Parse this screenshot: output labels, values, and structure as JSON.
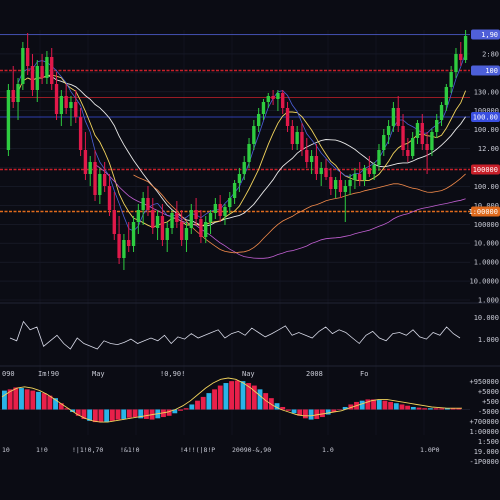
{
  "colors": {
    "background": "#0b0c14",
    "up": "#2ecc40",
    "down": "#e0194a",
    "ma_white": "#e8e8e8",
    "ma_yellow": "#f2d45c",
    "ma_orange": "#f28a4a",
    "ma_purple": "#c05fd1",
    "ma_blue": "#4c5fd8",
    "level_red": "#c8202a",
    "level_orange": "#e06a1c",
    "level_blue": "#3a4fe0",
    "hist_up": "#2ab4e8",
    "hist_down": "#e8204a"
  },
  "chart_data": [
    {
      "type": "candlestick",
      "panel": "price",
      "ylim": [
        900,
        1800
      ],
      "grid": true,
      "y_tick_labels": [
        "1:#90",
        "2:80",
        "100",
        "130.00",
        "100000",
        "100.00",
        "12.00",
        "10.000",
        "100.00",
        "10.000",
        "100000",
        "10.000",
        "1.0000",
        "10.0000",
        "1.000"
      ],
      "x_tick_labels": [
        "090",
        "Im!90",
        "May",
        "!0,90!",
        "Nay",
        "2008",
        "Fo"
      ],
      "price_tags": [
        {
          "label": "1,90",
          "level": 1785,
          "color": "#5060d8"
        },
        {
          "label": "100",
          "level": 1665,
          "color": "#4c5fd8"
        },
        {
          "label": "100.00",
          "level": 1510,
          "color": "#3a4fe0"
        },
        {
          "label": "100000",
          "level": 1335,
          "color": "#c8202a"
        },
        {
          "label": "1:00000",
          "level": 1195,
          "color": "#e06a1c"
        }
      ],
      "levels": [
        {
          "value": 1785,
          "color": "#5060d8",
          "style": "solid"
        },
        {
          "value": 1665,
          "color": "#c8202a",
          "style": "dashed"
        },
        {
          "value": 1575,
          "color": "#c8202a",
          "style": "solid"
        },
        {
          "value": 1510,
          "color": "#3a4fe0",
          "style": "solid"
        },
        {
          "value": 1335,
          "color": "#c8202a",
          "style": "dashed"
        },
        {
          "value": 1195,
          "color": "#e06a1c",
          "style": "dashed"
        }
      ],
      "ohlc": [
        [
          1400,
          1620,
          1380,
          1600
        ],
        [
          1600,
          1680,
          1540,
          1560
        ],
        [
          1560,
          1640,
          1500,
          1620
        ],
        [
          1620,
          1760,
          1600,
          1740
        ],
        [
          1740,
          1790,
          1650,
          1680
        ],
        [
          1680,
          1720,
          1580,
          1600
        ],
        [
          1600,
          1700,
          1560,
          1680
        ],
        [
          1680,
          1720,
          1620,
          1640
        ],
        [
          1640,
          1730,
          1620,
          1710
        ],
        [
          1710,
          1740,
          1600,
          1620
        ],
        [
          1620,
          1660,
          1500,
          1520
        ],
        [
          1520,
          1600,
          1480,
          1580
        ],
        [
          1580,
          1620,
          1520,
          1540
        ],
        [
          1540,
          1580,
          1480,
          1560
        ],
        [
          1560,
          1600,
          1490,
          1510
        ],
        [
          1510,
          1540,
          1380,
          1400
        ],
        [
          1400,
          1460,
          1300,
          1320
        ],
        [
          1320,
          1380,
          1280,
          1360
        ],
        [
          1360,
          1400,
          1230,
          1250
        ],
        [
          1250,
          1340,
          1220,
          1320
        ],
        [
          1320,
          1360,
          1260,
          1280
        ],
        [
          1280,
          1320,
          1180,
          1200
        ],
        [
          1200,
          1260,
          1100,
          1120
        ],
        [
          1120,
          1180,
          1020,
          1040
        ],
        [
          1040,
          1120,
          1000,
          1100
        ],
        [
          1100,
          1160,
          1060,
          1080
        ],
        [
          1080,
          1180,
          1060,
          1160
        ],
        [
          1160,
          1220,
          1120,
          1200
        ],
        [
          1200,
          1260,
          1150,
          1240
        ],
        [
          1240,
          1280,
          1180,
          1200
        ],
        [
          1200,
          1240,
          1120,
          1140
        ],
        [
          1140,
          1200,
          1100,
          1180
        ],
        [
          1180,
          1220,
          1080,
          1100
        ],
        [
          1100,
          1160,
          1060,
          1140
        ],
        [
          1140,
          1200,
          1120,
          1190
        ],
        [
          1190,
          1230,
          1140,
          1160
        ],
        [
          1160,
          1200,
          1080,
          1100
        ],
        [
          1100,
          1160,
          1060,
          1140
        ],
        [
          1140,
          1220,
          1120,
          1200
        ],
        [
          1200,
          1240,
          1150,
          1170
        ],
        [
          1170,
          1200,
          1090,
          1110
        ],
        [
          1110,
          1180,
          1090,
          1160
        ],
        [
          1160,
          1200,
          1120,
          1190
        ],
        [
          1190,
          1240,
          1170,
          1220
        ],
        [
          1220,
          1250,
          1160,
          1180
        ],
        [
          1180,
          1220,
          1150,
          1210
        ],
        [
          1210,
          1260,
          1190,
          1240
        ],
        [
          1240,
          1300,
          1220,
          1290
        ],
        [
          1290,
          1340,
          1260,
          1320
        ],
        [
          1320,
          1380,
          1300,
          1360
        ],
        [
          1360,
          1440,
          1340,
          1420
        ],
        [
          1420,
          1500,
          1400,
          1480
        ],
        [
          1480,
          1540,
          1460,
          1520
        ],
        [
          1520,
          1570,
          1500,
          1560
        ],
        [
          1560,
          1590,
          1540,
          1580
        ],
        [
          1580,
          1600,
          1550,
          1570
        ],
        [
          1570,
          1600,
          1530,
          1590
        ],
        [
          1590,
          1600,
          1520,
          1540
        ],
        [
          1540,
          1560,
          1460,
          1480
        ],
        [
          1480,
          1500,
          1400,
          1420
        ],
        [
          1420,
          1480,
          1400,
          1460
        ],
        [
          1460,
          1490,
          1380,
          1400
        ],
        [
          1400,
          1440,
          1340,
          1360
        ],
        [
          1360,
          1400,
          1320,
          1380
        ],
        [
          1380,
          1420,
          1300,
          1320
        ],
        [
          1320,
          1360,
          1280,
          1340
        ],
        [
          1340,
          1370,
          1300,
          1310
        ],
        [
          1310,
          1340,
          1250,
          1270
        ],
        [
          1270,
          1310,
          1240,
          1300
        ],
        [
          1300,
          1330,
          1240,
          1260
        ],
        [
          1260,
          1300,
          1160,
          1280
        ],
        [
          1280,
          1320,
          1250,
          1300
        ],
        [
          1300,
          1340,
          1270,
          1320
        ],
        [
          1320,
          1360,
          1280,
          1300
        ],
        [
          1300,
          1350,
          1280,
          1340
        ],
        [
          1340,
          1380,
          1310,
          1320
        ],
        [
          1320,
          1360,
          1300,
          1350
        ],
        [
          1350,
          1420,
          1330,
          1400
        ],
        [
          1400,
          1470,
          1380,
          1450
        ],
        [
          1450,
          1500,
          1420,
          1480
        ],
        [
          1480,
          1560,
          1460,
          1540
        ],
        [
          1540,
          1580,
          1460,
          1480
        ],
        [
          1480,
          1520,
          1380,
          1400
        ],
        [
          1400,
          1440,
          1360,
          1380
        ],
        [
          1380,
          1460,
          1370,
          1440
        ],
        [
          1440,
          1500,
          1420,
          1490
        ],
        [
          1490,
          1520,
          1400,
          1420
        ],
        [
          1420,
          1460,
          1320,
          1400
        ],
        [
          1400,
          1470,
          1380,
          1460
        ],
        [
          1460,
          1520,
          1440,
          1500
        ],
        [
          1500,
          1560,
          1480,
          1550
        ],
        [
          1550,
          1620,
          1530,
          1610
        ],
        [
          1610,
          1680,
          1590,
          1660
        ],
        [
          1660,
          1740,
          1640,
          1720
        ],
        [
          1720,
          1760,
          1680,
          1700
        ],
        [
          1700,
          1800,
          1690,
          1780
        ]
      ]
    },
    {
      "type": "line",
      "panel": "oscillator",
      "ylim": [
        0,
        100
      ],
      "y_tick_labels": [
        "10.000",
        "1.000"
      ],
      "values": [
        40,
        35,
        70,
        55,
        60,
        25,
        35,
        45,
        30,
        20,
        40,
        30,
        25,
        20,
        35,
        30,
        28,
        32,
        38,
        30,
        35,
        40,
        35,
        45,
        30,
        42,
        38,
        48,
        40,
        45,
        50,
        55,
        40,
        48,
        52,
        45,
        58,
        50,
        42,
        48,
        55,
        62,
        45,
        50,
        45,
        40,
        52,
        60,
        48,
        55,
        50,
        40,
        30,
        45,
        52,
        40,
        35,
        48,
        50,
        45,
        55,
        42,
        38,
        50,
        45,
        60,
        48,
        40
      ]
    },
    {
      "type": "histogram",
      "panel": "macd",
      "y_tick_labels": [
        "+950000",
        "+5000",
        "+500",
        "-5000",
        "+700000",
        "1:00000",
        "1:500",
        "19.000",
        "-1P0000"
      ],
      "x_tick_labels": [
        "10",
        "1!0",
        "!|1!0,70",
        "!&1!0",
        "!4!!(|8!P",
        "20090-&,90",
        "1.0",
        "1.0P0"
      ],
      "values": [
        30,
        32,
        35,
        34,
        32,
        30,
        28,
        26,
        22,
        18,
        10,
        2,
        -4,
        -10,
        -15,
        -18,
        -20,
        -20,
        -20,
        -18,
        -16,
        -15,
        -13,
        -12,
        -14,
        -15,
        -16,
        -14,
        -12,
        -10,
        -6,
        -2,
        2,
        8,
        14,
        20,
        26,
        32,
        38,
        42,
        45,
        46,
        45,
        42,
        38,
        32,
        26,
        18,
        10,
        4,
        -2,
        -6,
        -10,
        -14,
        -16,
        -15,
        -12,
        -8,
        -4,
        0,
        4,
        8,
        12,
        14,
        16,
        16,
        15,
        14,
        12,
        10,
        8,
        6,
        4,
        3,
        2,
        2,
        2,
        2,
        2,
        2,
        2
      ],
      "signal": [
        20,
        28,
        34,
        36,
        34,
        30,
        24,
        16,
        8,
        0,
        -8,
        -14,
        -18,
        -20,
        -20,
        -18,
        -16,
        -14,
        -12,
        -10,
        -8,
        -6,
        -4,
        0,
        6,
        14,
        24,
        34,
        42,
        48,
        50,
        48,
        42,
        34,
        24,
        14,
        6,
        0,
        -4,
        -8,
        -10,
        -10,
        -8,
        -6,
        -4,
        -2,
        2,
        6,
        10,
        14,
        16,
        16,
        14,
        12,
        10,
        8,
        6,
        4,
        3,
        2,
        2,
        2
      ]
    }
  ]
}
